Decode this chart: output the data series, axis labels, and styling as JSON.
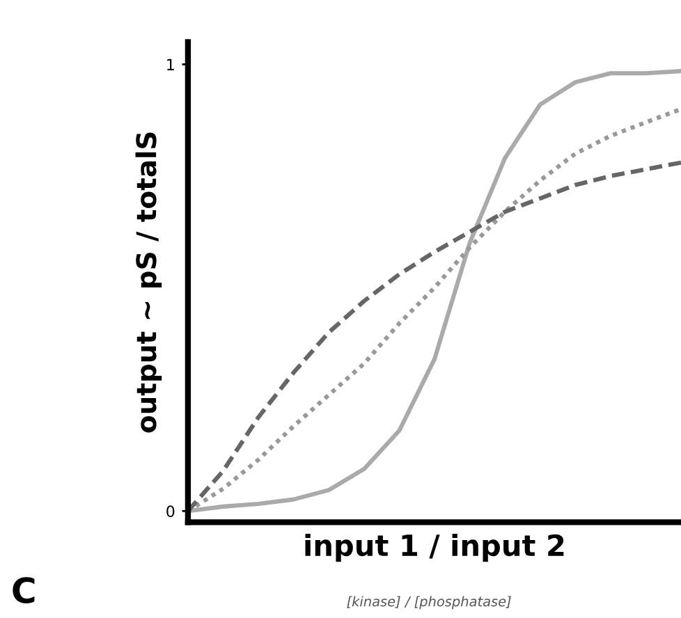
{
  "chart_data": {
    "type": "line",
    "xlabel": "input 1 / input 2",
    "ylabel": "output ~ pS / totalS",
    "annotations": [
      "[kinase] / [phosphatase]",
      "C"
    ],
    "categories": [
      null,
      null,
      null,
      null,
      null,
      null,
      null,
      null,
      null,
      null,
      null,
      null,
      null,
      null,
      null
    ],
    "series": [
      {
        "color": "#aaaaaa",
        "line_style": "solid",
        "values": [
          0,
          0.01,
          0.016,
          0.026,
          0.047,
          0.094,
          0.18,
          0.34,
          0.6,
          0.79,
          0.91,
          0.96,
          0.98,
          0.98,
          0.985
        ]
      },
      {
        "color": "#999999",
        "line_style": "dotted",
        "values": [
          0,
          0.05,
          0.115,
          0.19,
          0.26,
          0.33,
          0.42,
          0.5,
          0.59,
          0.67,
          0.74,
          0.8,
          0.84,
          0.87,
          0.9
        ]
      },
      {
        "color": "#666666",
        "line_style": "dashed",
        "values": [
          0,
          0.09,
          0.21,
          0.31,
          0.4,
          0.47,
          0.53,
          0.58,
          0.625,
          0.67,
          0.7,
          0.73,
          0.75,
          0.765,
          0.78
        ]
      }
    ],
    "ylim": [
      -0.025,
      1.05
    ],
    "yticks": [
      0,
      1
    ],
    "tick_labels": "y"
  }
}
